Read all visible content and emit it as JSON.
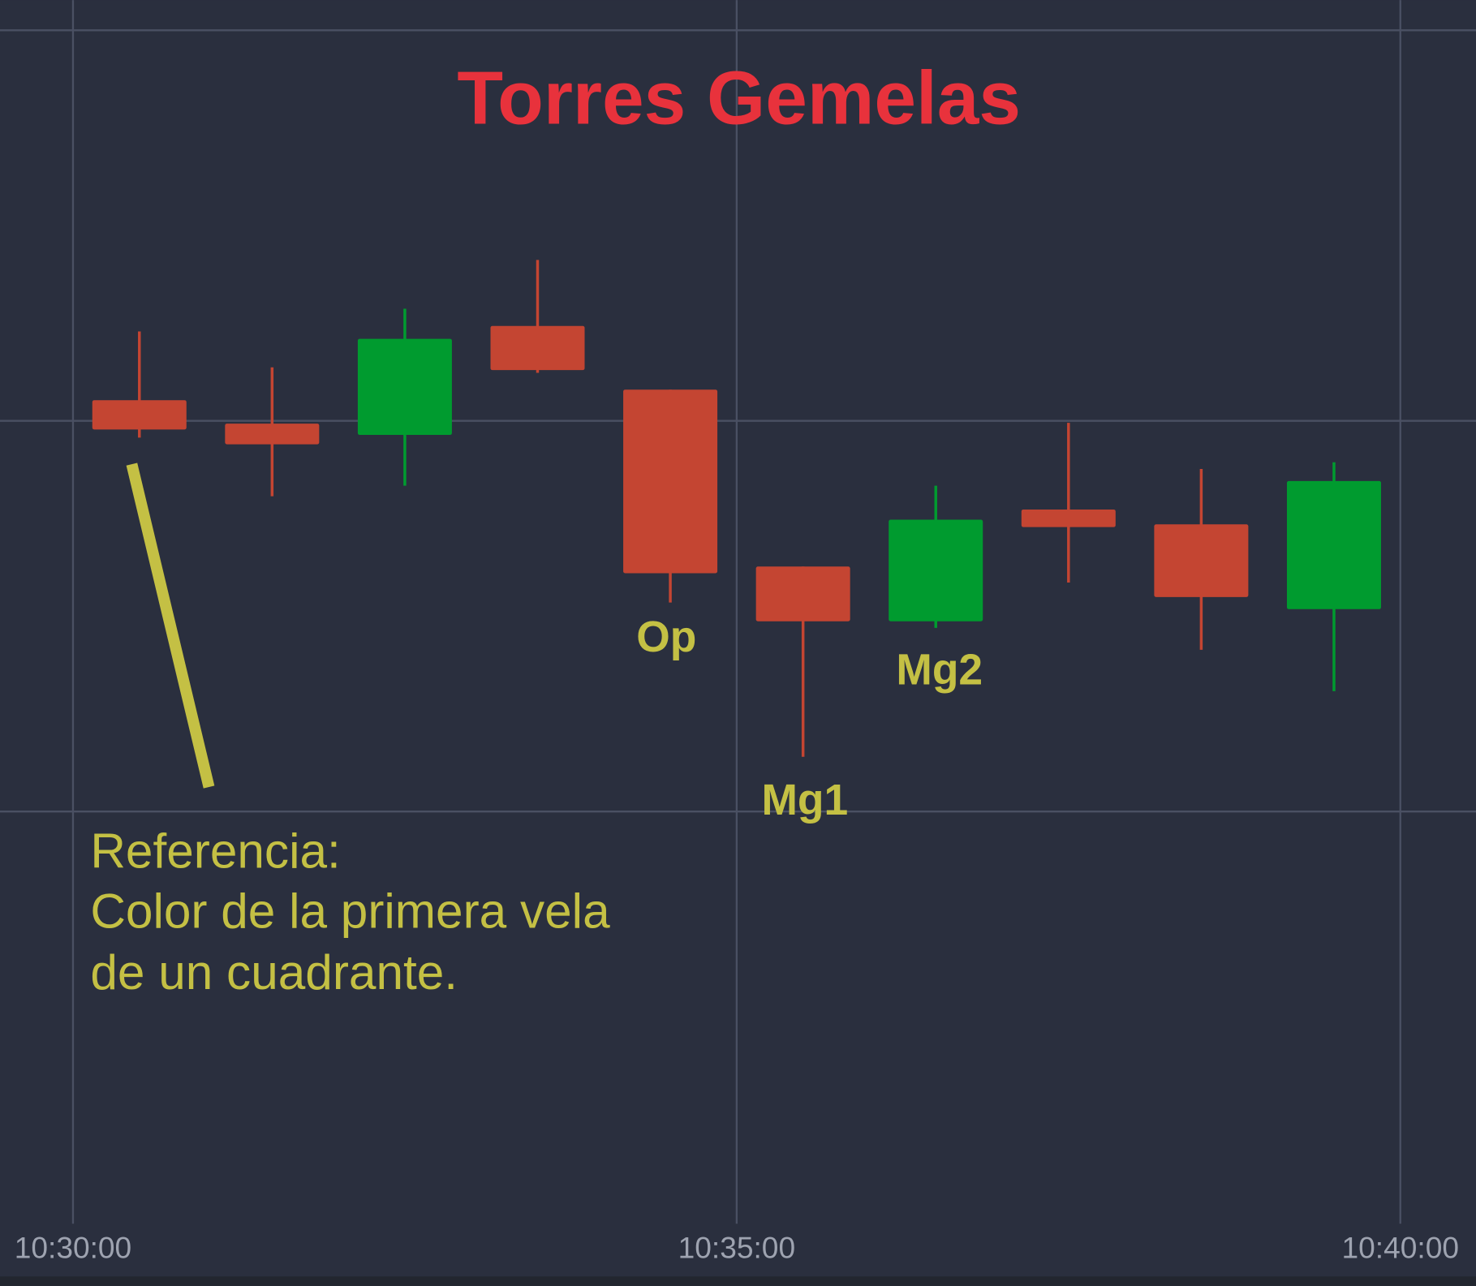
{
  "chart_data": {
    "type": "candlestick",
    "title": "Torres Gemelas",
    "x": [
      0.5,
      1.5,
      2.5,
      3.5,
      4.5,
      5.5,
      6.5,
      7.5,
      8.5,
      9.5
    ],
    "open": [
      10.53,
      9.93,
      9.64,
      12.43,
      10.8,
      6.27,
      4.87,
      7.73,
      7.35,
      5.18
    ],
    "high": [
      12.29,
      11.37,
      12.87,
      14.12,
      10.8,
      6.27,
      8.34,
      9.95,
      8.77,
      8.94
    ],
    "low": [
      9.57,
      8.07,
      8.34,
      11.23,
      5.35,
      1.4,
      4.7,
      5.86,
      4.14,
      3.08
    ],
    "close": [
      9.78,
      9.4,
      12.1,
      11.3,
      6.1,
      4.87,
      7.47,
      7.28,
      5.49,
      8.46
    ],
    "up_color": "#009b2f",
    "down_color": "#c44532",
    "xlim": [
      -0.55,
      10.57
    ],
    "ylim": [
      -10,
      20
    ],
    "xticks": [
      {
        "value": 0,
        "label": "10:30:00"
      },
      {
        "value": 5,
        "label": "10:35:00"
      },
      {
        "value": 10,
        "label": "10:40:00"
      }
    ],
    "grid_y": [
      0,
      10,
      20
    ],
    "grid": true,
    "annotations": [
      "Op",
      "Mg1",
      "Mg2"
    ],
    "note": [
      "Referencia:",
      "Color de la primera vela",
      "de un cuadrante."
    ]
  }
}
